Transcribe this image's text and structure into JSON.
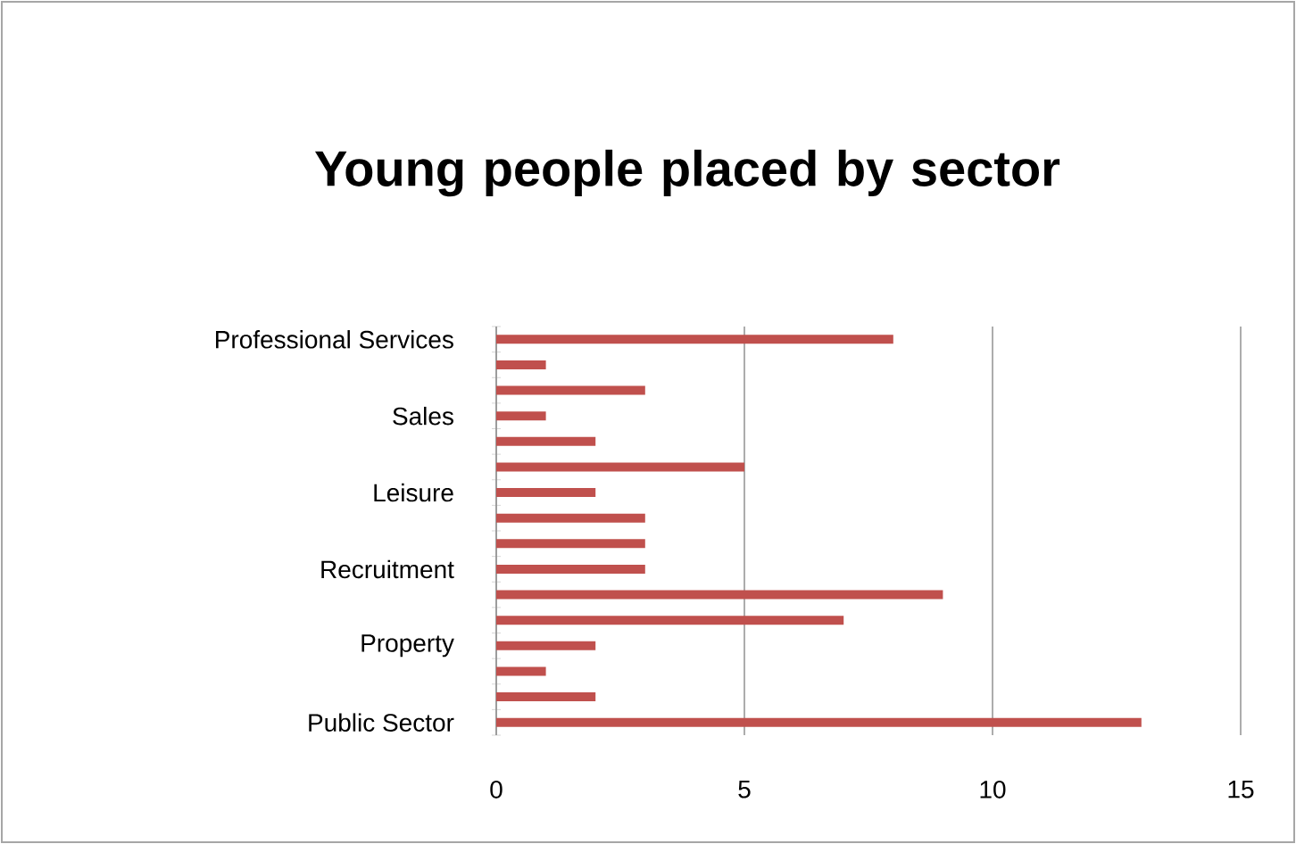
{
  "chart_data": {
    "type": "bar",
    "orientation": "horizontal",
    "title": "Young people placed by sector",
    "categories": [
      "Professional Services",
      null,
      null,
      "Sales",
      null,
      null,
      "Leisure",
      null,
      null,
      "Recruitment",
      null,
      null,
      "Property",
      null,
      null,
      "Public Sector"
    ],
    "values": [
      8,
      1,
      3,
      1,
      2,
      5,
      2,
      3,
      3,
      3,
      9,
      7,
      2,
      1,
      2,
      13
    ],
    "color": "#c0504d",
    "xlim": [
      0,
      15
    ],
    "xticks": [
      0,
      5,
      10,
      15
    ],
    "grid": "x"
  }
}
